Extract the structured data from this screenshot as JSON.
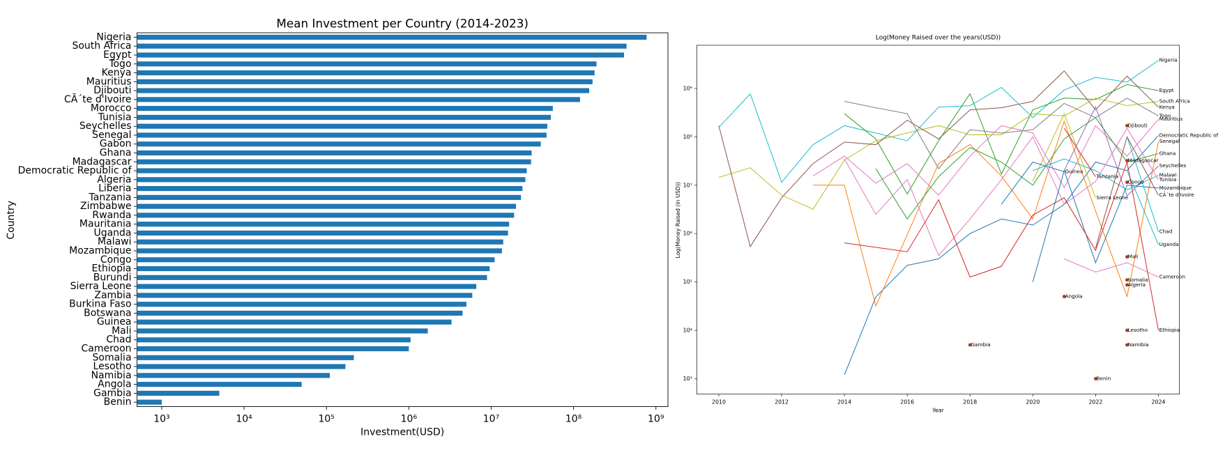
{
  "chart_data": [
    {
      "type": "barh",
      "title": "Mean Investment per Country (2014-2023)",
      "xlabel": "Investment(USD)",
      "ylabel": "Country",
      "xscale": "log",
      "color": "#1f77b4",
      "categories": [
        "Nigeria",
        "South Africa",
        "Egypt",
        "Togo",
        "Kenya",
        "Mauritius",
        "Djibouti",
        "CÃ´te d'Ivoire",
        "Morocco",
        "Tunisia",
        "Seychelles",
        "Senegal",
        "Gabon",
        "Ghana",
        "Madagascar",
        "Democratic Republic of",
        "Algeria",
        "Liberia",
        "Tanzania",
        "Zimbabwe",
        "Rwanda",
        "Mauritania",
        "Uganda",
        "Malawi",
        "Mozambique",
        "Congo",
        "Ethiopia",
        "Burundi",
        "Sierra Leone",
        "Zambia",
        "Burkina Faso",
        "Botswana",
        "Guinea",
        "Mali",
        "Chad",
        "Cameroon",
        "Somalia",
        "Lesotho",
        "Namibia",
        "Angola",
        "Gambia",
        "Benin"
      ],
      "values": [
        770000000,
        440000000,
        410000000,
        190000000,
        180000000,
        170000000,
        155000000,
        120000000,
        56000000,
        53000000,
        48000000,
        47000000,
        40000000,
        31000000,
        30500000,
        27000000,
        26000000,
        24000000,
        23000000,
        20000000,
        19000000,
        16500000,
        16000000,
        14000000,
        13500000,
        11000000,
        9600000,
        8900000,
        6600000,
        5900000,
        5000000,
        4500000,
        3300000,
        1700000,
        1050000,
        1000000,
        215000,
        170000,
        110000,
        50000,
        5000,
        1000
      ],
      "xlim": [
        500,
        1400000000
      ],
      "xticks": [
        {
          "value": 1000,
          "label": "10³"
        },
        {
          "value": 10000,
          "label": "10⁴"
        },
        {
          "value": 100000,
          "label": "10⁵"
        },
        {
          "value": 1000000,
          "label": "10⁶"
        },
        {
          "value": 10000000,
          "label": "10⁷"
        },
        {
          "value": 100000000,
          "label": "10⁸"
        },
        {
          "value": 1000000000,
          "label": "10⁹"
        }
      ]
    },
    {
      "type": "line",
      "title": "Log(Money Raised over the years(USD))",
      "xlabel": "Year",
      "ylabel": "Log(Money Raised (in USD))",
      "yscale": "log",
      "x": [
        2010,
        2011,
        2012,
        2013,
        2014,
        2015,
        2016,
        2017,
        2018,
        2019,
        2020,
        2021,
        2022,
        2023,
        2024
      ],
      "xlim": [
        2009.3,
        2024.67
      ],
      "xticks": [
        2010,
        2012,
        2014,
        2016,
        2018,
        2020,
        2022,
        2024
      ],
      "ylim": [
        480,
        7800000000
      ],
      "yticks": [
        {
          "value": 1000,
          "label": "10³"
        },
        {
          "value": 10000,
          "label": "10⁴"
        },
        {
          "value": 100000,
          "label": "10⁵"
        },
        {
          "value": 1000000,
          "label": "10⁶"
        },
        {
          "value": 10000000,
          "label": "10⁷"
        },
        {
          "value": 100000000,
          "label": "10⁸"
        },
        {
          "value": 1000000000,
          "label": "10⁹"
        }
      ],
      "series": [
        {
          "name": "Nigeria",
          "color": "#17becf",
          "values": [
            156000000,
            770000000,
            11500000,
            69000000,
            170000000,
            120000000,
            83000000,
            410000000,
            440000000,
            1050000000,
            250000000,
            930000000,
            1700000000,
            1350000000,
            3800000000
          ]
        },
        {
          "name": "Egypt",
          "color": "#2ca02c",
          "values": [
            null,
            null,
            null,
            null,
            300000000,
            90000000,
            6600000,
            83000000,
            780000000,
            17000000,
            360000000,
            630000000,
            590000000,
            1200000000,
            900000000
          ]
        },
        {
          "name": "South Africa",
          "color": "#bcbd22",
          "values": [
            14500000,
            23000000,
            6200000,
            3200000,
            33000000,
            83000000,
            120000000,
            170000000,
            110000000,
            110000000,
            300000000,
            270000000,
            630000000,
            440000000,
            540000000
          ]
        },
        {
          "name": "Kenya",
          "color": "#8c564b",
          "values": [
            170000000,
            540000,
            5500000,
            28000000,
            78000000,
            69000000,
            220000000,
            90000000,
            360000000,
            400000000,
            540000000,
            2300000000,
            360000000,
            1800000000,
            410000000
          ]
        },
        {
          "name": "Togo",
          "color": "#7f7f7f",
          "values": [
            null,
            null,
            null,
            null,
            540000000,
            400000000,
            300000000,
            22000000,
            140000000,
            120000000,
            140000000,
            490000000,
            250000000,
            630000000,
            270000000
          ]
        },
        {
          "name": "Mauritius",
          "color": "#e377c2",
          "values": [
            null,
            null,
            null,
            15500000,
            40000000,
            11000000,
            28000000,
            6200000,
            40000000,
            170000000,
            120000000,
            8900000,
            170000000,
            40000000,
            230000000
          ]
        },
        {
          "name": "Democratic Republic of",
          "color": "#1f77b4",
          "values": [
            null,
            null,
            null,
            null,
            1200,
            49000,
            220000,
            300000,
            1000000,
            2000000,
            1500000,
            4000000,
            30000000,
            20000000,
            107000000
          ]
        },
        {
          "name": "Senegal",
          "color": "#ff7f0e",
          "values": [
            null,
            null,
            null,
            10000000,
            10000000,
            32000,
            950000,
            28000000,
            69000000,
            15500000,
            2000000,
            210000000,
            2900000,
            50000,
            80000000
          ]
        },
        {
          "name": "Ghana",
          "color": "#2ca02c",
          "values": [
            null,
            null,
            null,
            null,
            null,
            22000000,
            2000000,
            15000000,
            60000000,
            30000000,
            10000000,
            90000000,
            250000000,
            30000000,
            45000000
          ]
        },
        {
          "name": "Seychelles",
          "color": "#9467bd",
          "values": [
            null,
            null,
            null,
            null,
            null,
            null,
            null,
            null,
            null,
            null,
            null,
            20000000,
            420000000,
            6000000,
            25000000
          ]
        },
        {
          "name": "Malawi",
          "color": "#17becf",
          "values": [
            null,
            null,
            null,
            null,
            null,
            null,
            null,
            null,
            null,
            null,
            20000000,
            35000000,
            20000000,
            8000000,
            16000000
          ]
        },
        {
          "name": "Tunisia",
          "color": "#e377c2",
          "values": [
            null,
            null,
            null,
            null,
            35000000,
            2500000,
            13000000,
            350000,
            2000000,
            13000000,
            100000000,
            4000000,
            12000000,
            150000000,
            13000000
          ]
        },
        {
          "name": "Mozambique",
          "color": "#1f77b4",
          "values": [
            null,
            null,
            null,
            null,
            null,
            null,
            null,
            null,
            null,
            null,
            100000,
            20000000,
            250000,
            10000000,
            8700000
          ]
        },
        {
          "name": "CÃ´te d'Ivoire",
          "color": "#8c564b",
          "values": [
            null,
            null,
            null,
            null,
            null,
            null,
            null,
            null,
            null,
            null,
            null,
            null,
            500000,
            100000000,
            6200000
          ]
        },
        {
          "name": "Chad",
          "color": "#17becf",
          "values": [
            null,
            null,
            null,
            null,
            null,
            null,
            null,
            null,
            null,
            null,
            null,
            null,
            null,
            100000000,
            1100000
          ]
        },
        {
          "name": "Uganda",
          "color": "#17becf",
          "values": [
            null,
            null,
            null,
            null,
            null,
            null,
            null,
            null,
            null,
            null,
            null,
            null,
            null,
            20000000,
            590000
          ]
        },
        {
          "name": "Cameroon",
          "color": "#e377c2",
          "values": [
            null,
            null,
            null,
            null,
            null,
            null,
            null,
            null,
            null,
            null,
            null,
            300000,
            160000,
            250000,
            126000
          ]
        },
        {
          "name": "Ethiopia",
          "color": "#d62728",
          "values": [
            null,
            null,
            null,
            null,
            640000,
            520000,
            420000,
            5000000,
            126000,
            210000,
            2400000,
            5500000,
            450000,
            30000000,
            10000
          ]
        },
        {
          "name": "Sierra Leone",
          "color": "#bcbd22",
          "values": [
            null,
            null,
            null,
            null,
            null,
            null,
            null,
            null,
            null,
            null,
            12000000,
            300000000,
            5500000,
            null,
            null
          ]
        },
        {
          "name": "Guinea",
          "color": "#1f77b4",
          "values": [
            null,
            null,
            null,
            null,
            null,
            null,
            null,
            null,
            null,
            4000000,
            30000000,
            19000000,
            null,
            null,
            null
          ]
        },
        {
          "name": "Tanzania",
          "color": "#d62728",
          "values": [
            null,
            null,
            null,
            null,
            null,
            null,
            null,
            null,
            null,
            null,
            null,
            150000000,
            15000000,
            null,
            null
          ]
        },
        {
          "name": "Djibouti",
          "color": "#d62728",
          "values": [
            null,
            null,
            null,
            null,
            null,
            null,
            null,
            null,
            null,
            null,
            null,
            null,
            null,
            170000000,
            null
          ]
        },
        {
          "name": "Madagascar",
          "color": "#d62728",
          "values": [
            null,
            null,
            null,
            null,
            null,
            null,
            null,
            null,
            null,
            null,
            null,
            null,
            null,
            32000000,
            null
          ]
        },
        {
          "name": "Congo",
          "color": "#d62728",
          "values": [
            null,
            null,
            null,
            null,
            null,
            null,
            null,
            null,
            null,
            null,
            null,
            null,
            null,
            11500000,
            null
          ]
        },
        {
          "name": "Mali",
          "color": "#d62728",
          "values": [
            null,
            null,
            null,
            null,
            null,
            null,
            null,
            null,
            null,
            null,
            null,
            null,
            null,
            330000,
            null
          ]
        },
        {
          "name": "Somalia",
          "color": "#d62728",
          "values": [
            null,
            null,
            null,
            null,
            null,
            null,
            null,
            null,
            null,
            null,
            null,
            null,
            null,
            110000,
            null
          ]
        },
        {
          "name": "Algeria",
          "color": "#d62728",
          "values": [
            null,
            null,
            null,
            null,
            null,
            null,
            null,
            null,
            null,
            null,
            null,
            null,
            null,
            87000,
            null
          ]
        },
        {
          "name": "Angola",
          "color": "#d62728",
          "values": [
            null,
            null,
            null,
            null,
            null,
            null,
            null,
            null,
            null,
            null,
            null,
            50000,
            null,
            null,
            null
          ]
        },
        {
          "name": "Gambia",
          "color": "#d62728",
          "values": [
            null,
            null,
            null,
            null,
            null,
            null,
            null,
            null,
            5000,
            null,
            null,
            null,
            null,
            null,
            null
          ]
        },
        {
          "name": "Benin",
          "color": "#d62728",
          "values": [
            null,
            null,
            null,
            null,
            null,
            null,
            null,
            null,
            null,
            null,
            null,
            null,
            1000,
            null,
            null
          ]
        },
        {
          "name": "Lesotho",
          "color": "#d62728",
          "values": [
            null,
            null,
            null,
            null,
            null,
            null,
            null,
            null,
            null,
            null,
            null,
            null,
            null,
            10000,
            null
          ]
        },
        {
          "name": "Namibia",
          "color": "#d62728",
          "values": [
            null,
            null,
            null,
            null,
            null,
            null,
            null,
            null,
            null,
            null,
            null,
            null,
            null,
            5000,
            null
          ]
        }
      ]
    }
  ]
}
